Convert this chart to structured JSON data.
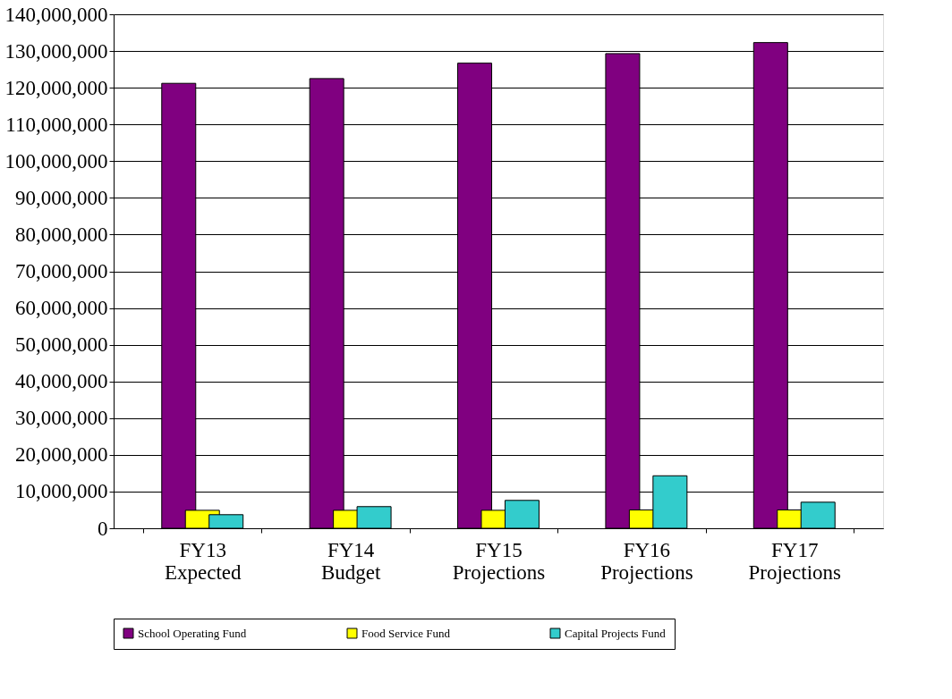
{
  "chart_data": {
    "type": "bar",
    "categories": [
      "FY13\nExpected",
      "FY14\nBudget",
      "FY15\nProjections",
      "FY16\nProjections",
      "FY17\nProjections"
    ],
    "series": [
      {
        "name": "School Operating Fund",
        "color": "#800080",
        "values": [
          121200000,
          122500000,
          126700000,
          129300000,
          132300000
        ]
      },
      {
        "name": "Food Service Fund",
        "color": "#ffff00",
        "values": [
          4900000,
          4900000,
          4900000,
          5000000,
          5000000
        ]
      },
      {
        "name": "Capital Projects Fund",
        "color": "#33cccc",
        "values": [
          3700000,
          5900000,
          7600000,
          14300000,
          7100000
        ]
      }
    ],
    "ylim": [
      0,
      140000000
    ],
    "yticks": [
      0,
      {
        "value": 10000000,
        "label": "10,000,000"
      },
      {
        "value": 20000000,
        "label": "20,000,000"
      },
      {
        "value": 30000000,
        "label": "30,000,000"
      },
      {
        "value": 40000000,
        "label": "40,000,000"
      },
      {
        "value": 50000000,
        "label": "50,000,000"
      },
      {
        "value": 60000000,
        "label": "60,000,000"
      },
      {
        "value": 70000000,
        "label": "70,000,000"
      },
      {
        "value": 80000000,
        "label": "80,000,000"
      },
      {
        "value": 90000000,
        "label": "90,000,000"
      },
      {
        "value": 100000000,
        "label": "100,000,000"
      },
      {
        "value": 110000000,
        "label": "110,000,000"
      },
      {
        "value": 120000000,
        "label": "120,000,000"
      },
      {
        "value": 130000000,
        "label": "130,000,000"
      },
      {
        "value": 140000000,
        "label": "140,000,000"
      }
    ],
    "grid": "y",
    "legend": "bottom"
  }
}
